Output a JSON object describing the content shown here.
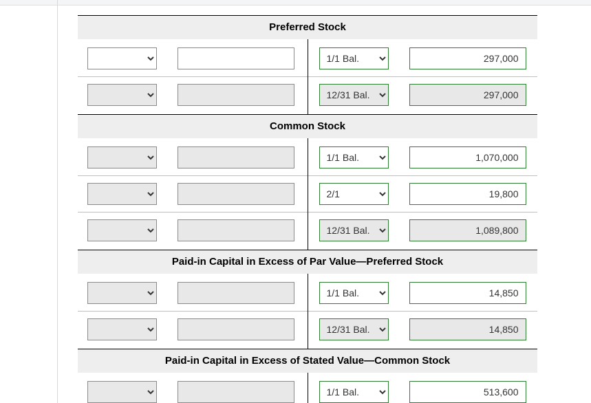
{
  "sections": [
    {
      "title": "Preferred Stock",
      "rows": [
        {
          "left": {
            "date": "",
            "date_disabled": false,
            "amount": "",
            "amount_disabled": false,
            "green": false
          },
          "right": {
            "date": "1/1 Bal.",
            "date_disabled": false,
            "amount": "297,000",
            "amount_disabled": false,
            "green": true
          }
        },
        {
          "left": {
            "date": "",
            "date_disabled": true,
            "amount": "",
            "amount_disabled": true,
            "green": false
          },
          "right": {
            "date": "12/31 Bal.",
            "date_disabled": true,
            "amount": "297,000",
            "amount_disabled": true,
            "green": true
          }
        }
      ]
    },
    {
      "title": "Common Stock",
      "rows": [
        {
          "left": {
            "date": "",
            "date_disabled": true,
            "amount": "",
            "amount_disabled": true,
            "green": false
          },
          "right": {
            "date": "1/1 Bal.",
            "date_disabled": false,
            "amount": "1,070,000",
            "amount_disabled": false,
            "green": true
          }
        },
        {
          "left": {
            "date": "",
            "date_disabled": true,
            "amount": "",
            "amount_disabled": true,
            "green": false
          },
          "right": {
            "date": "2/1",
            "date_disabled": false,
            "amount": "19,800",
            "amount_disabled": false,
            "green": true
          }
        },
        {
          "left": {
            "date": "",
            "date_disabled": true,
            "amount": "",
            "amount_disabled": true,
            "green": false
          },
          "right": {
            "date": "12/31 Bal.",
            "date_disabled": true,
            "amount": "1,089,800",
            "amount_disabled": true,
            "green": true
          }
        }
      ]
    },
    {
      "title": "Paid-in Capital in Excess of Par Value—Preferred Stock",
      "rows": [
        {
          "left": {
            "date": "",
            "date_disabled": true,
            "amount": "",
            "amount_disabled": true,
            "green": false
          },
          "right": {
            "date": "1/1 Bal.",
            "date_disabled": false,
            "amount": "14,850",
            "amount_disabled": false,
            "green": true
          }
        },
        {
          "left": {
            "date": "",
            "date_disabled": true,
            "amount": "",
            "amount_disabled": true,
            "green": false
          },
          "right": {
            "date": "12/31 Bal.",
            "date_disabled": true,
            "amount": "14,850",
            "amount_disabled": true,
            "green": true
          }
        }
      ]
    },
    {
      "title": "Paid-in Capital in Excess of Stated Value—Common Stock",
      "rows": [
        {
          "left": {
            "date": "",
            "date_disabled": true,
            "amount": "",
            "amount_disabled": true,
            "green": false
          },
          "right": {
            "date": "1/1 Bal.",
            "date_disabled": false,
            "amount": "513,600",
            "amount_disabled": false,
            "green": true
          }
        }
      ]
    }
  ],
  "colors": {
    "header_bg": "#eeeeee",
    "border_strong": "#000000",
    "border_light": "#bfbfbf",
    "green_border": "#2e7d32",
    "disabled_bg": "#e8e8e8",
    "input_border": "#8a8a8a"
  }
}
